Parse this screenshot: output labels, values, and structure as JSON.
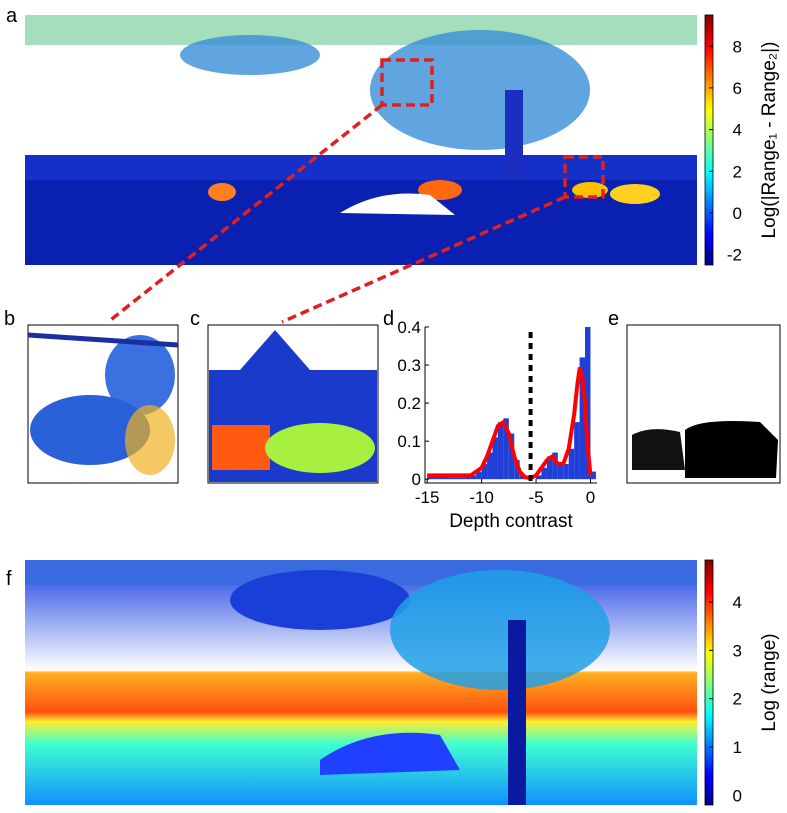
{
  "panel_labels": [
    "a",
    "b",
    "c",
    "d",
    "e",
    "f"
  ],
  "chart_data": [
    {
      "type": "colorbar",
      "label": "Log(|Range₁ - Range₂|)",
      "ylim": [
        -2.5,
        9.5
      ],
      "yticks": [
        -2,
        0,
        2,
        4,
        6,
        8
      ]
    },
    {
      "type": "histogram",
      "xlabel": "Depth contrast",
      "bins": [
        -15,
        -14.5,
        -14,
        -13.5,
        -13,
        -12.5,
        -12,
        -11.5,
        -11,
        -10.5,
        -10,
        -9.5,
        -9,
        -8.5,
        -8,
        -7.5,
        -7,
        -6.5,
        -6,
        -5.5,
        -5,
        -4.5,
        -4,
        -3.5,
        -3,
        -2.5,
        -2,
        -1.5,
        -1,
        -0.5,
        0,
        0.5
      ],
      "values": [
        0.01,
        0.01,
        0.01,
        0.01,
        0.005,
        0.005,
        0.005,
        0.01,
        0.01,
        0.02,
        0.04,
        0.07,
        0.11,
        0.15,
        0.16,
        0.12,
        0.05,
        0.01,
        0,
        0,
        0.01,
        0.03,
        0.06,
        0.07,
        0.04,
        0.04,
        0.08,
        0.15,
        0.32,
        0.4,
        0.02
      ],
      "color": "#1f3fd6",
      "fit": {
        "color": "#ff0000",
        "x": [
          -15,
          -13,
          -11,
          -10,
          -9.5,
          -9,
          -8.5,
          -8,
          -7.5,
          -7,
          -6.5,
          -6,
          -5.5,
          -5,
          -4.5,
          -4,
          -3.5,
          -3,
          -2.5,
          -2,
          -1.5,
          -1.2,
          -1,
          -0.8,
          -0.5,
          -0.3,
          0
        ],
        "y": [
          0.01,
          0.01,
          0.01,
          0.03,
          0.06,
          0.1,
          0.14,
          0.15,
          0.12,
          0.06,
          0.02,
          0.005,
          0.003,
          0.01,
          0.03,
          0.05,
          0.06,
          0.04,
          0.04,
          0.08,
          0.17,
          0.25,
          0.29,
          0.28,
          0.2,
          0.1,
          0.01
        ]
      },
      "threshold": -5.5,
      "xlim": [
        -15.2,
        0.6
      ],
      "ylim": [
        -0.01,
        0.4
      ],
      "xticks": [
        -15,
        -10,
        -5,
        0
      ],
      "yticks": [
        0,
        0.1,
        0.2,
        0.3,
        0.4
      ]
    },
    {
      "type": "colorbar",
      "label": "Log (range)",
      "ylim": [
        -0.2,
        4.87
      ],
      "yticks": [
        0,
        1,
        2,
        3,
        4
      ]
    }
  ]
}
